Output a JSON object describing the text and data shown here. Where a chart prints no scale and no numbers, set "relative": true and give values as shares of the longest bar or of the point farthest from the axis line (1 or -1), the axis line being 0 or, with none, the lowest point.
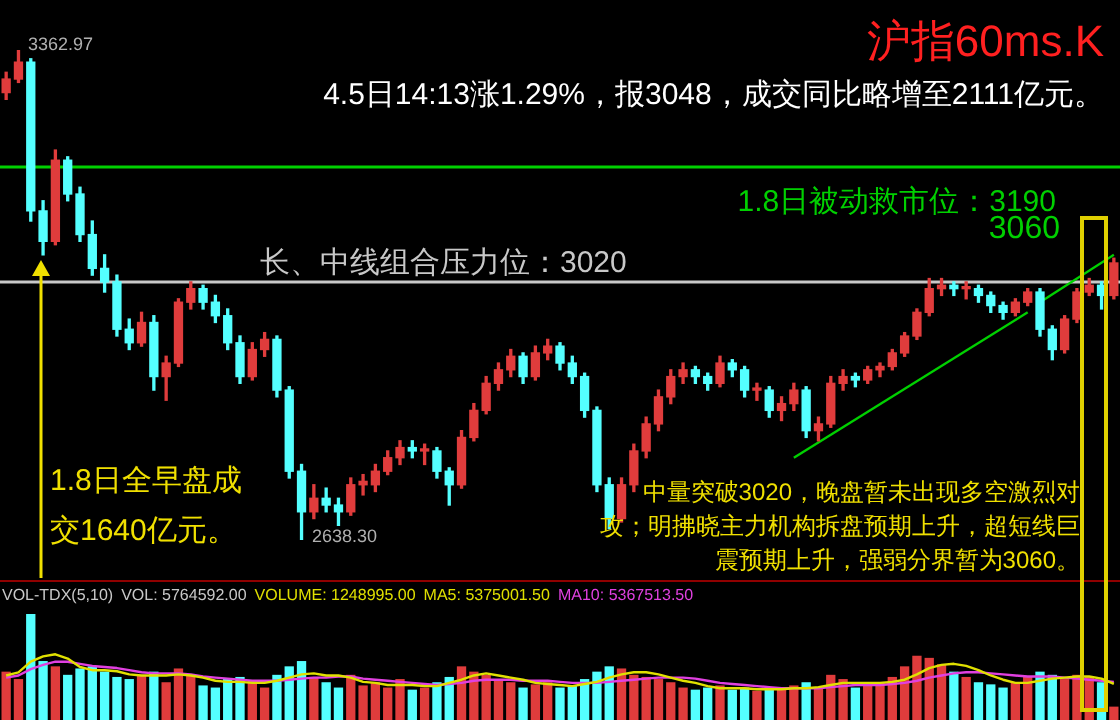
{
  "chart_data": [
    {
      "type": "candlestick",
      "title": "沪指60ms.K",
      "categories": [
        null,
        null,
        null,
        null,
        null,
        null,
        null,
        null,
        null,
        null,
        null,
        null,
        null,
        null,
        null,
        null,
        null,
        null,
        null,
        null,
        null,
        null,
        null,
        null,
        null,
        null,
        null,
        null,
        null,
        null,
        null,
        null,
        null,
        null,
        null,
        null,
        null,
        null,
        null,
        null,
        null,
        null,
        null,
        null,
        null,
        null,
        null,
        null,
        null,
        null,
        null,
        null,
        null,
        null,
        null,
        null,
        null,
        null,
        null,
        null,
        null,
        null,
        null,
        null,
        null,
        null,
        null,
        null,
        null,
        null,
        null,
        null,
        null,
        null,
        null,
        null,
        null,
        null,
        null,
        null,
        null,
        null,
        null,
        null,
        null,
        null,
        null,
        null,
        null,
        null,
        null
      ],
      "ohlc": [
        [
          3300,
          3330,
          3290,
          3320
        ],
        [
          3320,
          3362.97,
          3315,
          3345
        ],
        [
          3345,
          3350,
          3110,
          3125
        ],
        [
          3125,
          3140,
          3060,
          3080
        ],
        [
          3080,
          3215,
          3075,
          3200
        ],
        [
          3200,
          3205,
          3140,
          3150
        ],
        [
          3150,
          3160,
          3080,
          3090
        ],
        [
          3090,
          3110,
          3030,
          3040
        ],
        [
          3040,
          3060,
          3005,
          3020
        ],
        [
          3020,
          3030,
          2940,
          2950
        ],
        [
          2950,
          2965,
          2920,
          2930
        ],
        [
          2930,
          2975,
          2925,
          2960
        ],
        [
          2960,
          2970,
          2860,
          2880
        ],
        [
          2880,
          2910,
          2845,
          2900
        ],
        [
          2900,
          2995,
          2895,
          2990
        ],
        [
          2990,
          3020,
          2980,
          3010
        ],
        [
          3010,
          3015,
          2980,
          2990
        ],
        [
          2990,
          3000,
          2960,
          2970
        ],
        [
          2970,
          2980,
          2920,
          2930
        ],
        [
          2930,
          2940,
          2870,
          2880
        ],
        [
          2880,
          2930,
          2875,
          2920
        ],
        [
          2920,
          2945,
          2910,
          2935
        ],
        [
          2935,
          2940,
          2850,
          2860
        ],
        [
          2860,
          2865,
          2730,
          2740
        ],
        [
          2740,
          2750,
          2638.3,
          2680
        ],
        [
          2680,
          2720,
          2670,
          2700
        ],
        [
          2700,
          2715,
          2680,
          2690
        ],
        [
          2690,
          2700,
          2660,
          2680
        ],
        [
          2680,
          2730,
          2675,
          2720
        ],
        [
          2720,
          2735,
          2705,
          2725
        ],
        [
          2720,
          2750,
          2710,
          2740
        ],
        [
          2740,
          2770,
          2735,
          2760
        ],
        [
          2760,
          2785,
          2750,
          2775
        ],
        [
          2775,
          2785,
          2760,
          2770
        ],
        [
          2770,
          2780,
          2750,
          2773
        ],
        [
          2770,
          2775,
          2730,
          2740
        ],
        [
          2740,
          2745,
          2690,
          2720
        ],
        [
          2720,
          2800,
          2715,
          2790
        ],
        [
          2790,
          2840,
          2785,
          2830
        ],
        [
          2830,
          2880,
          2825,
          2870
        ],
        [
          2870,
          2900,
          2860,
          2890
        ],
        [
          2890,
          2920,
          2880,
          2910
        ],
        [
          2910,
          2915,
          2870,
          2880
        ],
        [
          2880,
          2925,
          2875,
          2915
        ],
        [
          2915,
          2935,
          2905,
          2925
        ],
        [
          2925,
          2930,
          2890,
          2900
        ],
        [
          2900,
          2910,
          2870,
          2880
        ],
        [
          2880,
          2885,
          2820,
          2830
        ],
        [
          2830,
          2835,
          2710,
          2720
        ],
        [
          2720,
          2730,
          2655,
          2670
        ],
        [
          2670,
          2730,
          2665,
          2720
        ],
        [
          2720,
          2780,
          2710,
          2770
        ],
        [
          2770,
          2820,
          2760,
          2810
        ],
        [
          2810,
          2860,
          2800,
          2850
        ],
        [
          2850,
          2890,
          2840,
          2880
        ],
        [
          2880,
          2900,
          2870,
          2890
        ],
        [
          2890,
          2895,
          2870,
          2880
        ],
        [
          2880,
          2885,
          2860,
          2870
        ],
        [
          2870,
          2910,
          2865,
          2900
        ],
        [
          2900,
          2905,
          2880,
          2890
        ],
        [
          2890,
          2895,
          2850,
          2860
        ],
        [
          2860,
          2870,
          2845,
          2860
        ],
        [
          2860,
          2865,
          2820,
          2830
        ],
        [
          2830,
          2850,
          2815,
          2840
        ],
        [
          2840,
          2870,
          2830,
          2860
        ],
        [
          2860,
          2865,
          2790,
          2800
        ],
        [
          2800,
          2820,
          2785,
          2810
        ],
        [
          2810,
          2880,
          2805,
          2870
        ],
        [
          2870,
          2890,
          2860,
          2880
        ],
        [
          2880,
          2885,
          2865,
          2875
        ],
        [
          2875,
          2895,
          2870,
          2890
        ],
        [
          2890,
          2900,
          2880,
          2895
        ],
        [
          2895,
          2920,
          2890,
          2915
        ],
        [
          2915,
          2945,
          2910,
          2940
        ],
        [
          2940,
          2980,
          2935,
          2975
        ],
        [
          2975,
          3025,
          2970,
          3010
        ],
        [
          3010,
          3025,
          3000,
          3015
        ],
        [
          3015,
          3020,
          3000,
          3010
        ],
        [
          3010,
          3020,
          2995,
          3010
        ],
        [
          3010,
          3015,
          2990,
          3000
        ],
        [
          3000,
          3005,
          2975,
          2985
        ],
        [
          2985,
          2990,
          2965,
          2975
        ],
        [
          2975,
          2995,
          2970,
          2990
        ],
        [
          2990,
          3010,
          2985,
          3005
        ],
        [
          3005,
          3010,
          2940,
          2950
        ],
        [
          2950,
          2955,
          2905,
          2920
        ],
        [
          2920,
          2970,
          2915,
          2965
        ],
        [
          2965,
          3010,
          2960,
          3005
        ],
        [
          3005,
          3025,
          3000,
          3015
        ],
        [
          3015,
          3020,
          2980,
          3000
        ],
        [
          3000,
          3055,
          2995,
          3048
        ]
      ],
      "colors": [
        "#e03c3c",
        "#e03c3c",
        "#54ffff",
        "#54ffff",
        "#e03c3c",
        "#54ffff",
        "#54ffff",
        "#54ffff",
        "#54ffff",
        "#54ffff",
        "#54ffff",
        "#e03c3c",
        "#54ffff",
        "#e03c3c",
        "#e03c3c",
        "#e03c3c",
        "#54ffff",
        "#54ffff",
        "#54ffff",
        "#54ffff",
        "#e03c3c",
        "#e03c3c",
        "#54ffff",
        "#54ffff",
        "#54ffff",
        "#e03c3c",
        "#54ffff",
        "#54ffff",
        "#e03c3c",
        "#e03c3c",
        "#e03c3c",
        "#e03c3c",
        "#e03c3c",
        "#54ffff",
        "#e03c3c",
        "#54ffff",
        "#54ffff",
        "#e03c3c",
        "#e03c3c",
        "#e03c3c",
        "#e03c3c",
        "#e03c3c",
        "#54ffff",
        "#e03c3c",
        "#e03c3c",
        "#54ffff",
        "#54ffff",
        "#54ffff",
        "#54ffff",
        "#54ffff",
        "#e03c3c",
        "#e03c3c",
        "#e03c3c",
        "#e03c3c",
        "#e03c3c",
        "#e03c3c",
        "#54ffff",
        "#54ffff",
        "#e03c3c",
        "#54ffff",
        "#54ffff",
        "#e03c3c",
        "#54ffff",
        "#e03c3c",
        "#e03c3c",
        "#54ffff",
        "#e03c3c",
        "#e03c3c",
        "#e03c3c",
        "#54ffff",
        "#e03c3c",
        "#e03c3c",
        "#e03c3c",
        "#e03c3c",
        "#e03c3c",
        "#e03c3c",
        "#e03c3c",
        "#54ffff",
        "#e03c3c",
        "#54ffff",
        "#54ffff",
        "#54ffff",
        "#e03c3c",
        "#e03c3c",
        "#54ffff",
        "#54ffff",
        "#e03c3c",
        "#e03c3c",
        "#e03c3c",
        "#54ffff",
        "#e03c3c"
      ],
      "series": [
        {
          "type": "line",
          "color": "#00d000",
          "values": [
            null,
            null,
            null,
            null,
            null,
            null,
            null,
            null,
            null,
            null,
            null,
            null,
            null,
            null,
            null,
            null,
            null,
            null,
            null,
            null,
            null,
            null,
            null,
            null,
            null,
            null,
            null,
            null,
            null,
            null,
            null,
            null,
            null,
            null,
            null,
            null,
            null,
            null,
            null,
            null,
            null,
            null,
            null,
            null,
            null,
            null,
            null,
            null,
            null,
            null,
            null,
            null,
            null,
            null,
            null,
            null,
            null,
            null,
            null,
            null,
            null,
            null,
            null,
            null,
            2760,
            null,
            null,
            null,
            null,
            null,
            null,
            null,
            null,
            null,
            null,
            null,
            null,
            null,
            null,
            null,
            null,
            null,
            null,
            2975,
            null,
            null,
            null,
            null,
            null,
            null,
            null
          ]
        },
        {
          "type": "line",
          "color": "#00d000",
          "values": [
            null,
            null,
            null,
            null,
            null,
            null,
            null,
            null,
            null,
            null,
            null,
            null,
            null,
            null,
            null,
            null,
            null,
            null,
            null,
            null,
            null,
            null,
            null,
            null,
            null,
            null,
            null,
            null,
            null,
            null,
            null,
            null,
            null,
            null,
            null,
            null,
            null,
            null,
            null,
            null,
            null,
            null,
            null,
            null,
            null,
            null,
            null,
            null,
            null,
            null,
            null,
            null,
            null,
            null,
            null,
            null,
            null,
            null,
            null,
            null,
            null,
            null,
            null,
            null,
            null,
            null,
            null,
            null,
            null,
            null,
            null,
            null,
            null,
            null,
            null,
            null,
            null,
            null,
            null,
            null,
            null,
            null,
            null,
            null,
            2990,
            null,
            null,
            null,
            null,
            null,
            3060
          ]
        }
      ],
      "ref_lines": [
        {
          "axis": "y",
          "value": 3190,
          "label": "1.8日被动救市位：3190",
          "color": "#00d000"
        },
        {
          "axis": "y",
          "value": 3020,
          "label": "长、中线组合压力位：3020",
          "color": "#c8c8c8"
        }
      ],
      "annotations": [
        "4.5日14:13涨1.29%，报3048，成交同比略增至2111亿元。",
        "1.8日全早盘成交1640亿元。",
        "中量突破3020，晚盘暂未出现多空激烈对攻；明拂晓主力机构拆盘预期上升，超短线巨震预期上升，强弱分界暂为3060。",
        "3362.97",
        "2638.30",
        "3060"
      ]
    },
    {
      "type": "bar",
      "relative": true,
      "categories": [
        null,
        null,
        null,
        null,
        null,
        null,
        null,
        null,
        null,
        null,
        null,
        null,
        null,
        null,
        null,
        null,
        null,
        null,
        null,
        null,
        null,
        null,
        null,
        null,
        null,
        null,
        null,
        null,
        null,
        null,
        null,
        null,
        null,
        null,
        null,
        null,
        null,
        null,
        null,
        null,
        null,
        null,
        null,
        null,
        null,
        null,
        null,
        null,
        null,
        null,
        null,
        null,
        null,
        null,
        null,
        null,
        null,
        null,
        null,
        null,
        null,
        null,
        null,
        null,
        null,
        null,
        null,
        null,
        null,
        null,
        null,
        null,
        null,
        null,
        null,
        null,
        null,
        null,
        null,
        null,
        null,
        null,
        null,
        null,
        null,
        null,
        null,
        null,
        null,
        null,
        null
      ],
      "values": [
        0.45,
        0.38,
        1.0,
        0.55,
        0.5,
        0.42,
        0.48,
        0.5,
        0.45,
        0.4,
        0.38,
        0.42,
        0.45,
        0.35,
        0.48,
        0.42,
        0.32,
        0.3,
        0.38,
        0.4,
        0.36,
        0.3,
        0.42,
        0.5,
        0.55,
        0.4,
        0.35,
        0.3,
        0.42,
        0.32,
        0.35,
        0.3,
        0.38,
        0.28,
        0.3,
        0.35,
        0.4,
        0.5,
        0.45,
        0.42,
        0.38,
        0.35,
        0.3,
        0.33,
        0.35,
        0.3,
        0.32,
        0.38,
        0.45,
        0.5,
        0.48,
        0.42,
        0.4,
        0.38,
        0.35,
        0.3,
        0.28,
        0.3,
        0.32,
        0.28,
        0.3,
        0.27,
        0.3,
        0.28,
        0.32,
        0.35,
        0.3,
        0.42,
        0.38,
        0.3,
        0.32,
        0.35,
        0.4,
        0.5,
        0.6,
        0.58,
        0.52,
        0.45,
        0.4,
        0.35,
        0.33,
        0.3,
        0.35,
        0.4,
        0.45,
        0.42,
        0.38,
        0.42,
        0.4,
        0.35,
        0.12
      ],
      "colors": [
        "#e03c3c",
        "#e03c3c",
        "#54ffff",
        "#54ffff",
        "#e03c3c",
        "#54ffff",
        "#54ffff",
        "#54ffff",
        "#54ffff",
        "#54ffff",
        "#54ffff",
        "#e03c3c",
        "#54ffff",
        "#e03c3c",
        "#e03c3c",
        "#e03c3c",
        "#54ffff",
        "#54ffff",
        "#54ffff",
        "#54ffff",
        "#e03c3c",
        "#e03c3c",
        "#54ffff",
        "#54ffff",
        "#54ffff",
        "#e03c3c",
        "#54ffff",
        "#54ffff",
        "#e03c3c",
        "#e03c3c",
        "#e03c3c",
        "#e03c3c",
        "#e03c3c",
        "#54ffff",
        "#e03c3c",
        "#54ffff",
        "#54ffff",
        "#e03c3c",
        "#e03c3c",
        "#e03c3c",
        "#e03c3c",
        "#e03c3c",
        "#54ffff",
        "#e03c3c",
        "#e03c3c",
        "#54ffff",
        "#54ffff",
        "#54ffff",
        "#54ffff",
        "#54ffff",
        "#e03c3c",
        "#e03c3c",
        "#e03c3c",
        "#e03c3c",
        "#e03c3c",
        "#e03c3c",
        "#54ffff",
        "#54ffff",
        "#e03c3c",
        "#54ffff",
        "#54ffff",
        "#e03c3c",
        "#54ffff",
        "#e03c3c",
        "#e03c3c",
        "#54ffff",
        "#e03c3c",
        "#e03c3c",
        "#e03c3c",
        "#54ffff",
        "#e03c3c",
        "#e03c3c",
        "#e03c3c",
        "#e03c3c",
        "#e03c3c",
        "#e03c3c",
        "#e03c3c",
        "#54ffff",
        "#e03c3c",
        "#54ffff",
        "#54ffff",
        "#54ffff",
        "#e03c3c",
        "#e03c3c",
        "#54ffff",
        "#54ffff",
        "#e03c3c",
        "#e03c3c",
        "#e03c3c",
        "#54ffff",
        "#e03c3c"
      ],
      "series": [
        {
          "type": "line",
          "color": "#e0e000",
          "values": [
            0.42,
            0.45,
            0.55,
            0.6,
            0.62,
            0.58,
            0.5,
            0.47,
            0.47,
            0.46,
            0.43,
            0.42,
            0.42,
            0.42,
            0.43,
            0.42,
            0.4,
            0.37,
            0.36,
            0.36,
            0.35,
            0.35,
            0.37,
            0.4,
            0.43,
            0.44,
            0.42,
            0.42,
            0.4,
            0.36,
            0.35,
            0.33,
            0.33,
            0.33,
            0.32,
            0.32,
            0.35,
            0.38,
            0.42,
            0.44,
            0.42,
            0.4,
            0.38,
            0.35,
            0.34,
            0.33,
            0.32,
            0.34,
            0.36,
            0.4,
            0.43,
            0.45,
            0.45,
            0.43,
            0.4,
            0.37,
            0.35,
            0.32,
            0.3,
            0.3,
            0.3,
            0.29,
            0.29,
            0.29,
            0.3,
            0.3,
            0.31,
            0.33,
            0.35,
            0.35,
            0.35,
            0.35,
            0.36,
            0.38,
            0.43,
            0.49,
            0.52,
            0.53,
            0.51,
            0.47,
            0.42,
            0.38,
            0.35,
            0.35,
            0.37,
            0.39,
            0.4,
            0.41,
            0.41,
            0.39,
            0.34
          ]
        },
        {
          "type": "line",
          "color": "#e040e0",
          "values": [
            0.4,
            0.42,
            0.48,
            0.52,
            0.55,
            0.55,
            0.53,
            0.51,
            0.5,
            0.49,
            0.47,
            0.45,
            0.44,
            0.44,
            0.44,
            0.43,
            0.41,
            0.4,
            0.39,
            0.38,
            0.37,
            0.37,
            0.37,
            0.38,
            0.39,
            0.4,
            0.4,
            0.41,
            0.41,
            0.39,
            0.38,
            0.37,
            0.36,
            0.35,
            0.34,
            0.33,
            0.34,
            0.35,
            0.37,
            0.38,
            0.38,
            0.38,
            0.37,
            0.37,
            0.37,
            0.36,
            0.35,
            0.35,
            0.35,
            0.36,
            0.37,
            0.38,
            0.39,
            0.4,
            0.4,
            0.4,
            0.39,
            0.37,
            0.35,
            0.34,
            0.33,
            0.32,
            0.31,
            0.3,
            0.3,
            0.3,
            0.3,
            0.31,
            0.32,
            0.33,
            0.33,
            0.33,
            0.34,
            0.35,
            0.37,
            0.4,
            0.42,
            0.44,
            0.45,
            0.45,
            0.44,
            0.43,
            0.42,
            0.41,
            0.41,
            0.41,
            0.4,
            0.39,
            0.38,
            0.37,
            0.36
          ]
        }
      ],
      "annotations": [
        "VOL-TDX(5,10)",
        "VOL: 5764592.00",
        "VOLUME: 1248995.00",
        "MA5: 5375001.50",
        "MA10: 5367513.50"
      ]
    }
  ]
}
